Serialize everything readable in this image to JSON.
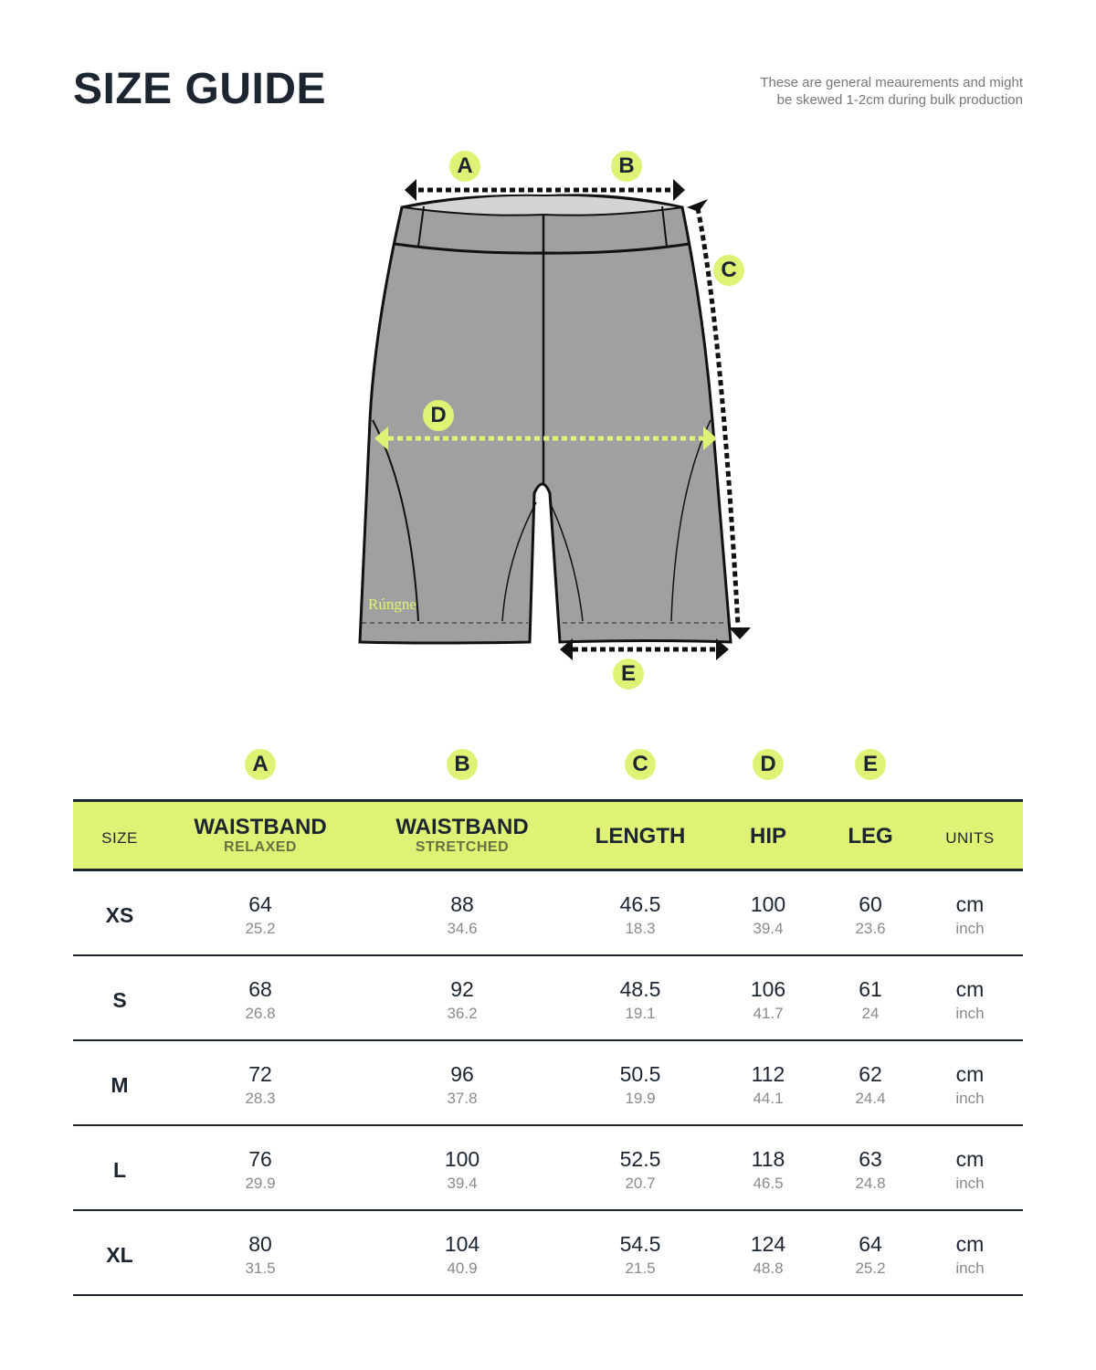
{
  "header": {
    "title": "SIZE GUIDE",
    "note_lines": [
      "These are general meaurements and might",
      "be skewed 1-2cm during bulk production"
    ]
  },
  "diagram": {
    "labels": [
      "A",
      "B",
      "C",
      "D",
      "E"
    ],
    "brand_text": "Rúngne",
    "garment_color": "#a0a0a0",
    "accent": "#e0f276"
  },
  "column_badges": [
    "A",
    "B",
    "C",
    "D",
    "E"
  ],
  "columns": [
    {
      "label": "SIZE"
    },
    {
      "label": "WAISTBAND",
      "sub": "RELAXED"
    },
    {
      "label": "WAISTBAND",
      "sub": "STRETCHED"
    },
    {
      "label": "LENGTH"
    },
    {
      "label": "HIP"
    },
    {
      "label": "LEG"
    },
    {
      "label": "UNITS"
    }
  ],
  "units": {
    "cm": "cm",
    "inch": "inch"
  },
  "rows": [
    {
      "size": "XS",
      "cm": [
        "64",
        "88",
        "46.5",
        "100",
        "60"
      ],
      "inch": [
        "25.2",
        "34.6",
        "18.3",
        "39.4",
        "23.6"
      ]
    },
    {
      "size": "S",
      "cm": [
        "68",
        "92",
        "48.5",
        "106",
        "61"
      ],
      "inch": [
        "26.8",
        "36.2",
        "19.1",
        "41.7",
        "24"
      ]
    },
    {
      "size": "M",
      "cm": [
        "72",
        "96",
        "50.5",
        "112",
        "62"
      ],
      "inch": [
        "28.3",
        "37.8",
        "19.9",
        "44.1",
        "24.4"
      ]
    },
    {
      "size": "L",
      "cm": [
        "76",
        "100",
        "52.5",
        "118",
        "63"
      ],
      "inch": [
        "29.9",
        "39.4",
        "20.7",
        "46.5",
        "24.8"
      ]
    },
    {
      "size": "XL",
      "cm": [
        "80",
        "104",
        "54.5",
        "124",
        "64"
      ],
      "inch": [
        "31.5",
        "40.9",
        "21.5",
        "48.8",
        "25.2"
      ]
    }
  ],
  "colors": {
    "accent": "#e0f276",
    "dark": "#1c2530"
  }
}
